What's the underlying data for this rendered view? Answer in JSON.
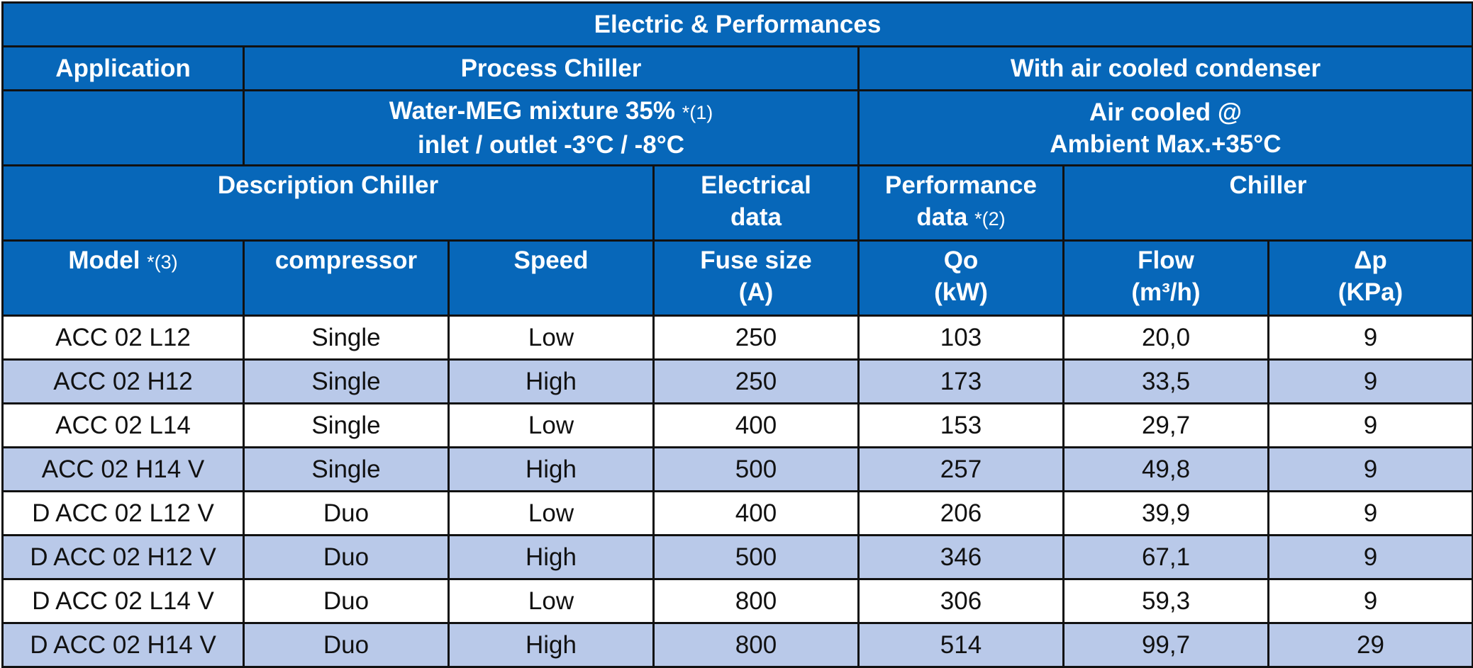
{
  "title": "Electric & Performances",
  "application": {
    "label": "Application",
    "process_chiller": "Process Chiller",
    "condenser": "With air cooled condenser"
  },
  "conditions": {
    "fluid_line1": "Water-MEG mixture 35%",
    "fluid_ref": "*(1)",
    "fluid_line2": "inlet / outlet  -3°C / -8°C",
    "air_line1": "Air cooled @",
    "air_line2": "Ambient Max.+35°C"
  },
  "groups": {
    "description": "Description Chiller",
    "electrical_line1": "Electrical",
    "electrical_line2": "data",
    "performance_line1": "Performance",
    "performance_line2": "data",
    "performance_ref": "*(2)",
    "chiller": "Chiller"
  },
  "columns": {
    "model": "Model",
    "model_ref": "*(3)",
    "compressor": "compressor",
    "speed": "Speed",
    "fuse_line1": "Fuse size",
    "fuse_line2": "(A)",
    "qo_line1": "Qo",
    "qo_line2": "(kW)",
    "flow_line1": "Flow",
    "flow_line2": "(m³/h)",
    "dp_line1": "Δp",
    "dp_line2": "(KPa)"
  },
  "rows": [
    [
      "ACC 02 L12",
      "Single",
      "Low",
      "250",
      "103",
      "20,0",
      "9"
    ],
    [
      "ACC 02 H12",
      "Single",
      "High",
      "250",
      "173",
      "33,5",
      "9"
    ],
    [
      "ACC 02 L14",
      "Single",
      "Low",
      "400",
      "153",
      "29,7",
      "9"
    ],
    [
      "ACC 02 H14 V",
      "Single",
      "High",
      "500",
      "257",
      "49,8",
      "9"
    ],
    [
      "D ACC 02 L12 V",
      "Duo",
      "Low",
      "400",
      "206",
      "39,9",
      "9"
    ],
    [
      "D ACC 02 H12 V",
      "Duo",
      "High",
      "500",
      "346",
      "67,1",
      "9"
    ],
    [
      "D ACC 02 L14 V",
      "Duo",
      "Low",
      "800",
      "306",
      "59,3",
      "9"
    ],
    [
      "D ACC 02 H14 V",
      "Duo",
      "High",
      "800",
      "514",
      "99,7",
      "29"
    ]
  ],
  "colors": {
    "header_bg": "#0767b9",
    "header_text": "#ffffff",
    "row_alt_bg": "#b9c9e9",
    "border": "#111111"
  }
}
